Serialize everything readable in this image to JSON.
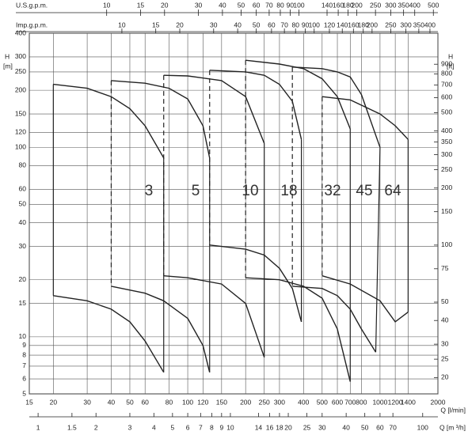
{
  "chart_data": {
    "type": "line",
    "log_scale": true,
    "grid": true,
    "xlabel": "Q [l/min]",
    "xlim": [
      15,
      2000
    ],
    "xticks": [
      15,
      20,
      30,
      40,
      50,
      60,
      80,
      100,
      120,
      150,
      200,
      250,
      300,
      400,
      500,
      600,
      700,
      800,
      1000,
      1200,
      1400,
      2000
    ],
    "ylabel": "H",
    "yunit": "[m]",
    "ylim": [
      5,
      400
    ],
    "yticks": [
      5,
      6,
      7,
      8,
      9,
      10,
      15,
      20,
      30,
      40,
      50,
      60,
      80,
      100,
      120,
      150,
      200,
      250,
      300,
      400
    ],
    "y2label": "H",
    "y2unit": "[ft]",
    "y2lim": [
      16.4,
      1312
    ],
    "y2ticks": [
      20,
      25,
      30,
      40,
      50,
      75,
      100,
      150,
      200,
      250,
      300,
      350,
      400,
      500,
      600,
      700,
      800,
      900
    ],
    "secondary_x_axes": [
      {
        "label": "Q [m ³/h]",
        "lim": [
          0.9,
          120
        ],
        "ticks": [
          1,
          1.5,
          2,
          3,
          4,
          5,
          6,
          7,
          8,
          9,
          10,
          14,
          16,
          18,
          20,
          25,
          30,
          40,
          50,
          60,
          70,
          100
        ]
      },
      {
        "label": "U.S.g.p.m.",
        "lim": [
          3.96,
          528
        ],
        "ticks": [
          10,
          15,
          20,
          30,
          40,
          50,
          60,
          70,
          80,
          90,
          100,
          140,
          160,
          180,
          200,
          250,
          300,
          350,
          400,
          500
        ]
      },
      {
        "label": "Imp.g.p.m.",
        "lim": [
          3.3,
          440
        ],
        "ticks": [
          10,
          15,
          20,
          30,
          40,
          50,
          60,
          70,
          80,
          90,
          100,
          120,
          140,
          160,
          180,
          200,
          250,
          300,
          350,
          400
        ]
      }
    ],
    "series": [
      {
        "name": "3",
        "color": "#222222",
        "upper": {
          "x": [
            20,
            30,
            40,
            50,
            60,
            75
          ],
          "values": [
            215,
            205,
            185,
            160,
            130,
            88
          ]
        },
        "lower": {
          "x": [
            20,
            30,
            40,
            50,
            60,
            75
          ],
          "values": [
            16.5,
            15.5,
            14,
            12,
            9.5,
            6.5
          ]
        }
      },
      {
        "name": "5",
        "color": "#222222",
        "upper": {
          "x": [
            40,
            60,
            80,
            100,
            120,
            130
          ],
          "values": [
            225,
            218,
            205,
            180,
            130,
            88
          ]
        },
        "lower": {
          "x": [
            40,
            60,
            75,
            100,
            120,
            130
          ],
          "values": [
            18.5,
            17,
            15.5,
            12.5,
            9,
            6.5
          ]
        }
      },
      {
        "name": "10",
        "color": "#222222",
        "upper": {
          "x": [
            75,
            100,
            150,
            200,
            250
          ],
          "values": [
            240,
            238,
            225,
            185,
            105
          ]
        },
        "lower": {
          "x": [
            75,
            100,
            150,
            200,
            250
          ],
          "values": [
            21,
            20.5,
            19,
            15,
            7.8
          ]
        }
      },
      {
        "name": "18",
        "color": "#222222",
        "upper": {
          "x": [
            130,
            200,
            250,
            300,
            350,
            390
          ],
          "values": [
            255,
            250,
            240,
            215,
            175,
            110
          ]
        },
        "lower": {
          "x": [
            130,
            200,
            250,
            300,
            350,
            390
          ],
          "values": [
            30.5,
            29,
            27,
            23,
            18,
            12
          ]
        }
      },
      {
        "name": "32",
        "color": "#222222",
        "upper": {
          "x": [
            200,
            300,
            400,
            500,
            600,
            700
          ],
          "values": [
            288,
            275,
            260,
            230,
            185,
            125
          ]
        },
        "lower": {
          "x": [
            200,
            300,
            400,
            500,
            600,
            700
          ],
          "values": [
            20.5,
            20,
            18.5,
            16,
            11,
            5.8
          ]
        }
      },
      {
        "name": "45",
        "color": "#222222",
        "upper": {
          "x": [
            350,
            500,
            600,
            700,
            800,
            1000
          ],
          "values": [
            265,
            260,
            250,
            235,
            190,
            100
          ]
        },
        "lower": {
          "x": [
            350,
            500,
            600,
            700,
            800,
            950
          ],
          "values": [
            18.5,
            18,
            16.5,
            14,
            11,
            8.3
          ]
        }
      },
      {
        "name": "64",
        "color": "#222222",
        "upper": {
          "x": [
            500,
            700,
            1000,
            1200,
            1400
          ],
          "values": [
            185,
            178,
            150,
            130,
            110
          ]
        },
        "lower": {
          "x": [
            500,
            700,
            1000,
            1200,
            1400
          ],
          "values": [
            21,
            19,
            15.5,
            12,
            13.5
          ]
        }
      }
    ]
  }
}
